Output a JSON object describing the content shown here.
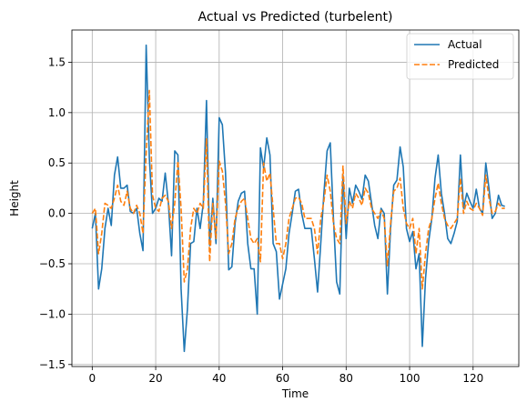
{
  "chart_data": {
    "type": "line",
    "title": "Actual vs Predicted (turbelent)",
    "xlabel": "Time",
    "ylabel": "Height",
    "xlim": [
      -6.4,
      134.4
    ],
    "ylim": [
      -1.52,
      1.82
    ],
    "xticks": [
      0,
      20,
      40,
      60,
      80,
      100,
      120
    ],
    "yticks": [
      -1.5,
      -1.0,
      -0.5,
      0.0,
      0.5,
      1.0,
      1.5
    ],
    "xtick_labels": [
      "0",
      "20",
      "40",
      "60",
      "80",
      "100",
      "120"
    ],
    "ytick_labels": [
      "−1.5",
      "−1.0",
      "−0.5",
      "0.0",
      "0.5",
      "1.0",
      "1.5"
    ],
    "grid": true,
    "legend_position": "top-right",
    "series": [
      {
        "name": "Actual",
        "color": "#1f77b4",
        "dash": "solid",
        "values": [
          -0.15,
          0.0,
          -0.75,
          -0.55,
          -0.15,
          0.05,
          -0.12,
          0.38,
          0.56,
          0.25,
          0.25,
          0.28,
          0.02,
          0.0,
          0.05,
          -0.2,
          -0.37,
          1.67,
          0.55,
          0.0,
          0.05,
          0.15,
          0.12,
          0.4,
          0.1,
          -0.42,
          0.62,
          0.58,
          -0.75,
          -1.37,
          -0.95,
          -0.3,
          -0.28,
          0.05,
          -0.15,
          0.1,
          1.12,
          -0.32,
          0.15,
          -0.3,
          0.95,
          0.88,
          0.4,
          -0.56,
          -0.53,
          -0.1,
          0.12,
          0.2,
          0.22,
          -0.3,
          -0.55,
          -0.55,
          -1.0,
          0.65,
          0.45,
          0.75,
          0.58,
          -0.3,
          -0.38,
          -0.85,
          -0.7,
          -0.55,
          -0.2,
          0.0,
          0.22,
          0.24,
          0.0,
          -0.15,
          -0.15,
          -0.15,
          -0.45,
          -0.78,
          -0.3,
          0.2,
          0.62,
          0.7,
          -0.05,
          -0.68,
          -0.8,
          0.38,
          -0.25,
          0.25,
          0.1,
          0.28,
          0.22,
          0.14,
          0.38,
          0.32,
          0.1,
          -0.12,
          -0.25,
          0.05,
          0.0,
          -0.8,
          -0.15,
          0.28,
          0.33,
          0.66,
          0.46,
          -0.15,
          -0.28,
          -0.18,
          -0.55,
          -0.4,
          -1.32,
          -0.65,
          -0.28,
          -0.05,
          0.35,
          0.58,
          0.2,
          0.0,
          -0.25,
          -0.3,
          -0.2,
          -0.08,
          0.58,
          0.05,
          0.2,
          0.12,
          0.05,
          0.24,
          0.05,
          0.0,
          0.5,
          0.25,
          -0.05,
          0.0,
          0.18,
          0.08,
          0.07
        ]
      },
      {
        "name": "Predicted",
        "color": "#ff7f0e",
        "dash": "dashed",
        "values": [
          0.0,
          0.05,
          -0.4,
          -0.2,
          0.1,
          0.08,
          0.05,
          0.15,
          0.28,
          0.12,
          0.08,
          0.22,
          0.05,
          0.0,
          0.08,
          0.0,
          -0.2,
          0.6,
          1.22,
          0.18,
          0.05,
          0.02,
          0.15,
          0.18,
          0.12,
          -0.15,
          0.1,
          0.52,
          0.05,
          -0.68,
          -0.55,
          -0.15,
          0.05,
          0.0,
          0.1,
          0.05,
          0.74,
          -0.48,
          0.1,
          -0.25,
          0.52,
          0.42,
          0.1,
          -0.4,
          -0.3,
          -0.05,
          0.05,
          0.12,
          0.15,
          -0.05,
          -0.25,
          -0.3,
          -0.25,
          -0.48,
          0.5,
          0.32,
          0.4,
          0.05,
          -0.3,
          -0.3,
          -0.45,
          -0.3,
          -0.05,
          0.05,
          0.15,
          0.16,
          0.1,
          -0.05,
          -0.05,
          -0.05,
          -0.15,
          -0.4,
          -0.05,
          0.12,
          0.38,
          0.22,
          -0.1,
          -0.25,
          -0.3,
          0.47,
          -0.1,
          0.12,
          0.05,
          0.2,
          0.15,
          0.08,
          0.25,
          0.2,
          0.05,
          0.0,
          -0.05,
          0.03,
          -0.05,
          -0.52,
          -0.1,
          0.22,
          0.25,
          0.35,
          0.05,
          -0.1,
          -0.15,
          -0.05,
          -0.4,
          -0.15,
          -0.75,
          -0.4,
          -0.15,
          -0.05,
          0.15,
          0.3,
          0.1,
          -0.05,
          -0.12,
          -0.15,
          -0.1,
          -0.05,
          0.35,
          0.0,
          0.12,
          0.05,
          0.03,
          0.1,
          0.05,
          -0.02,
          0.38,
          0.15,
          0.0,
          0.02,
          0.1,
          0.05,
          0.05
        ]
      }
    ]
  }
}
